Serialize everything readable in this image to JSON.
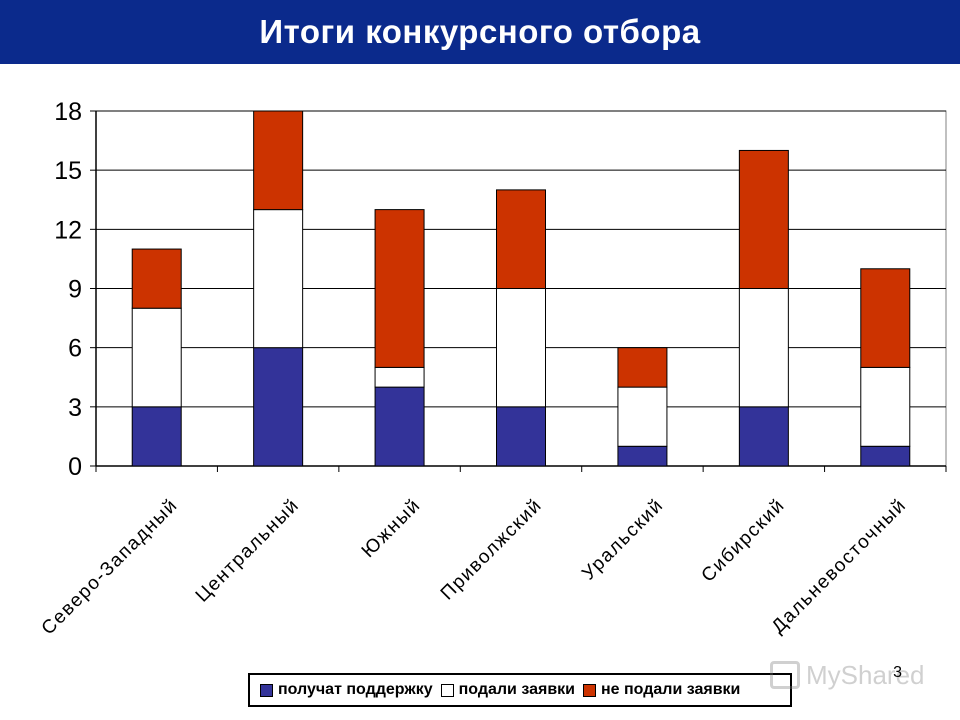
{
  "header": {
    "title": "Итоги конкурсного отбора"
  },
  "page_number": "3",
  "watermark": {
    "text": "MyShared"
  },
  "chart_data": {
    "type": "bar",
    "stacked": true,
    "categories": [
      "Северо-Западный",
      "Центральный",
      "Южный",
      "Приволжский",
      "Уральский",
      "Сибирский",
      "Дальневосточный"
    ],
    "series": [
      {
        "name": "получат поддержку",
        "color": "#333399",
        "values": [
          3,
          6,
          4,
          3,
          1,
          3,
          1
        ]
      },
      {
        "name": "подали заявки",
        "color": "#ffffff",
        "values": [
          5,
          7,
          1,
          6,
          3,
          6,
          4
        ]
      },
      {
        "name": "не подали заявки",
        "color": "#cc3300",
        "values": [
          3,
          5,
          8,
          5,
          2,
          7,
          5
        ]
      }
    ],
    "y_ticks": [
      "0",
      "3",
      "6",
      "9",
      "12",
      "15",
      "18"
    ],
    "ylim": [
      0,
      18
    ],
    "grid": true,
    "legend_position": "bottom"
  }
}
